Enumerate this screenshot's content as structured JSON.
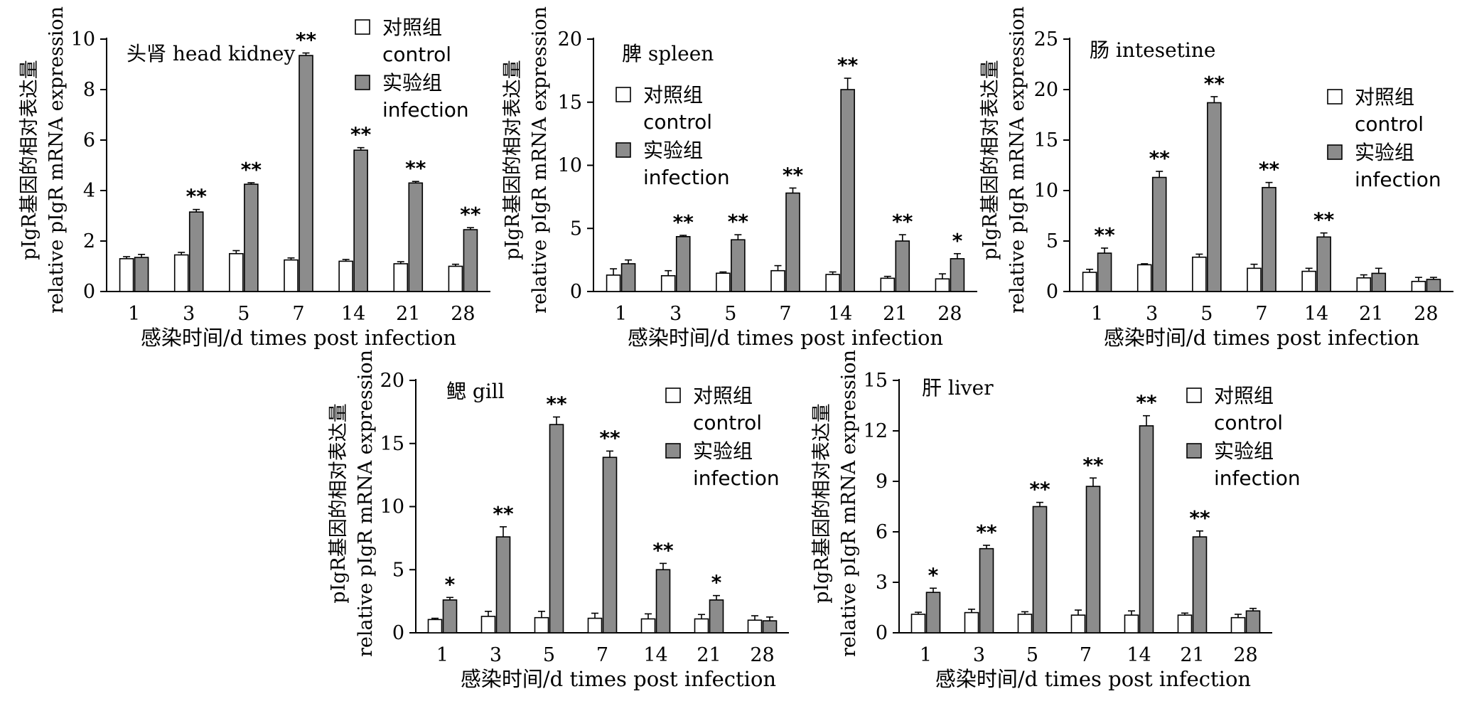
{
  "colors": {
    "control": "#ffffff",
    "infection": "#8c8c8c",
    "stroke": "#000000"
  },
  "chart_data": [
    {
      "type": "bar",
      "title": "头肾 head kidney",
      "xlabel": "感染时间/d times post infection",
      "ylabel_cn": "pIgR基因的相对表达量",
      "ylabel_en": "relative pIgR mRNA expression",
      "categories": [
        "1",
        "3",
        "5",
        "7",
        "14",
        "21",
        "28"
      ],
      "ylim": [
        0,
        10
      ],
      "yticks": [
        0,
        2,
        4,
        6,
        8,
        10
      ],
      "legend_position": "top-right",
      "series": [
        {
          "name": "对照组 control",
          "values": [
            1.3,
            1.45,
            1.5,
            1.25,
            1.2,
            1.1,
            1.0
          ],
          "errors": [
            0.08,
            0.1,
            0.12,
            0.08,
            0.07,
            0.08,
            0.08
          ]
        },
        {
          "name": "实验组 infection",
          "values": [
            1.35,
            3.15,
            4.25,
            9.35,
            5.6,
            4.3,
            2.45
          ],
          "errors": [
            0.12,
            0.1,
            0.06,
            0.1,
            0.1,
            0.06,
            0.08
          ]
        }
      ],
      "significance": [
        "",
        "**",
        "**",
        "**",
        "**",
        "**",
        "**"
      ]
    },
    {
      "type": "bar",
      "title": "脾 spleen",
      "xlabel": "感染时间/d times post infection",
      "ylabel_cn": "pIgR基因的相对表达量",
      "ylabel_en": "relative pIgR mRNA expression",
      "categories": [
        "1",
        "3",
        "5",
        "7",
        "14",
        "21",
        "28"
      ],
      "ylim": [
        0,
        20
      ],
      "yticks": [
        0,
        5,
        10,
        15,
        20
      ],
      "legend_position": "top-right",
      "series": [
        {
          "name": "对照组 control",
          "values": [
            1.3,
            1.25,
            1.45,
            1.65,
            1.35,
            1.05,
            1.0
          ],
          "errors": [
            0.5,
            0.4,
            0.1,
            0.4,
            0.2,
            0.15,
            0.4
          ]
        },
        {
          "name": "实验组 infection",
          "values": [
            2.2,
            4.35,
            4.1,
            7.8,
            16.0,
            4.0,
            2.6
          ],
          "errors": [
            0.3,
            0.1,
            0.4,
            0.4,
            0.9,
            0.5,
            0.4
          ]
        }
      ],
      "significance": [
        "",
        "**",
        "**",
        "**",
        "**",
        "**",
        "*"
      ]
    },
    {
      "type": "bar",
      "title": "肠 intesetine",
      "xlabel": "感染时间/d times post infection",
      "ylabel_cn": "pIgR基因的相对表达量",
      "ylabel_en": "relative pIgR mRNA expression",
      "categories": [
        "1",
        "3",
        "5",
        "7",
        "14",
        "21",
        "28"
      ],
      "ylim": [
        0,
        25
      ],
      "yticks": [
        0,
        5,
        10,
        15,
        20,
        25
      ],
      "legend_position": "top-right",
      "series": [
        {
          "name": "对照组 control",
          "values": [
            1.9,
            2.65,
            3.4,
            2.3,
            2.0,
            1.35,
            1.0
          ],
          "errors": [
            0.3,
            0.1,
            0.3,
            0.4,
            0.3,
            0.3,
            0.4
          ]
        },
        {
          "name": "实验组 infection",
          "values": [
            3.8,
            11.3,
            18.7,
            10.3,
            5.4,
            1.8,
            1.2
          ],
          "errors": [
            0.5,
            0.6,
            0.6,
            0.5,
            0.4,
            0.5,
            0.2
          ]
        }
      ],
      "significance": [
        "**",
        "**",
        "**",
        "**",
        "**",
        "",
        ""
      ]
    },
    {
      "type": "bar",
      "title": "鳃 gill",
      "xlabel": "感染时间/d times post infection",
      "ylabel_cn": "pIgR基因的相对表达量",
      "ylabel_en": "relative pIgR mRNA expression",
      "categories": [
        "1",
        "3",
        "5",
        "7",
        "14",
        "21",
        "28"
      ],
      "ylim": [
        0,
        20
      ],
      "yticks": [
        0,
        5,
        10,
        15,
        20
      ],
      "legend_position": "top-right",
      "series": [
        {
          "name": "对照组 control",
          "values": [
            1.05,
            1.3,
            1.2,
            1.15,
            1.1,
            1.1,
            1.0
          ],
          "errors": [
            0.1,
            0.4,
            0.5,
            0.4,
            0.4,
            0.35,
            0.35
          ]
        },
        {
          "name": "实验组 infection",
          "values": [
            2.6,
            7.6,
            16.5,
            13.9,
            5.0,
            2.6,
            0.95
          ],
          "errors": [
            0.2,
            0.8,
            0.6,
            0.5,
            0.5,
            0.35,
            0.3
          ]
        }
      ],
      "significance": [
        "*",
        "**",
        "**",
        "**",
        "**",
        "*",
        ""
      ]
    },
    {
      "type": "bar",
      "title": "肝 liver",
      "xlabel": "感染时间/d times post infection",
      "ylabel_cn": "pIgR基因的相对表达量",
      "ylabel_en": "relative pIgR mRNA expression",
      "categories": [
        "1",
        "3",
        "5",
        "7",
        "14",
        "21",
        "28"
      ],
      "ylim": [
        0,
        15
      ],
      "yticks": [
        0,
        3,
        6,
        9,
        12,
        15
      ],
      "legend_position": "top-right",
      "series": [
        {
          "name": "对照组 control",
          "values": [
            1.1,
            1.2,
            1.1,
            1.05,
            1.05,
            1.05,
            0.9
          ],
          "errors": [
            0.12,
            0.2,
            0.15,
            0.3,
            0.25,
            0.12,
            0.2
          ]
        },
        {
          "name": "实验组 infection",
          "values": [
            2.4,
            5.0,
            7.5,
            8.7,
            12.3,
            5.7,
            1.3
          ],
          "errors": [
            0.25,
            0.2,
            0.25,
            0.5,
            0.6,
            0.35,
            0.15
          ]
        }
      ],
      "significance": [
        "*",
        "**",
        "**",
        "**",
        "**",
        "**",
        ""
      ]
    }
  ]
}
